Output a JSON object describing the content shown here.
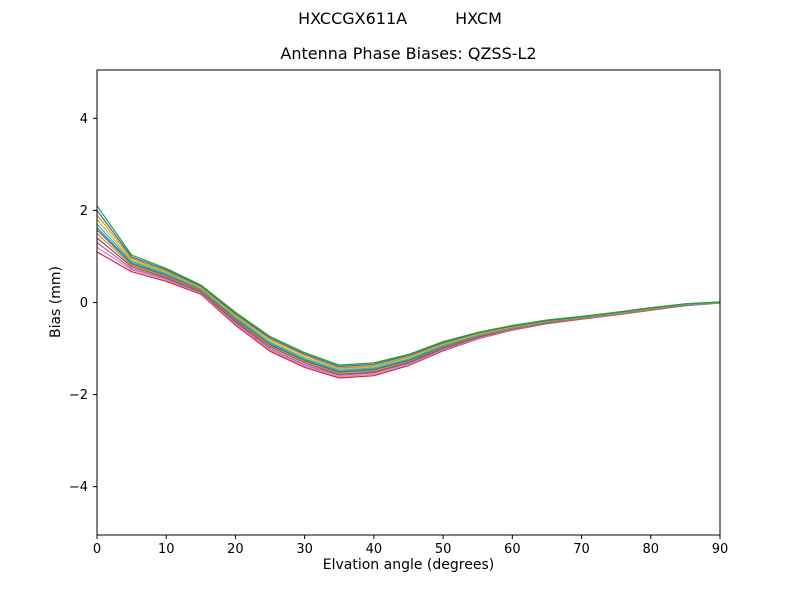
{
  "figure": {
    "suptitle_left": "HXCCGX611A",
    "suptitle_right": "HXCM",
    "title": "Antenna Phase Biases: QZSS-L2",
    "xlabel": "Elvation angle (degrees)",
    "ylabel": "Bias (mm)",
    "background_color": "#ffffff",
    "axis_color": "#000000"
  },
  "chart_data": {
    "type": "line",
    "title": "Antenna Phase Biases: QZSS-L2",
    "xlabel": "Elvation angle (degrees)",
    "ylabel": "Bias (mm)",
    "xlim": [
      0,
      90
    ],
    "ylim": [
      -5.05,
      5.05
    ],
    "x_ticks": [
      0,
      10,
      20,
      30,
      40,
      50,
      60,
      70,
      80,
      90
    ],
    "x_tick_labels": [
      "0",
      "10",
      "20",
      "30",
      "40",
      "50",
      "60",
      "70",
      "80",
      "90"
    ],
    "y_ticks": [
      -4,
      -2,
      0,
      2,
      4
    ],
    "y_tick_labels": [
      "−4",
      "−2",
      "0",
      "2",
      "4"
    ],
    "grid": false,
    "legend": "none",
    "x": [
      0,
      5,
      10,
      15,
      20,
      25,
      30,
      35,
      40,
      45,
      50,
      55,
      60,
      65,
      70,
      75,
      80,
      85,
      90
    ],
    "series": [
      {
        "name": "line-01",
        "color": "#d62728",
        "values": [
          1.1,
          0.67,
          0.46,
          0.18,
          -0.49,
          -1.06,
          -1.41,
          -1.64,
          -1.59,
          -1.37,
          -1.05,
          -0.79,
          -0.6,
          -0.46,
          -0.36,
          -0.27,
          -0.17,
          -0.07,
          -0.01
        ]
      },
      {
        "name": "line-02",
        "color": "#e377c2",
        "values": [
          1.2,
          0.71,
          0.49,
          0.2,
          -0.46,
          -1.03,
          -1.38,
          -1.61,
          -1.56,
          -1.35,
          -1.03,
          -0.78,
          -0.59,
          -0.45,
          -0.35,
          -0.26,
          -0.16,
          -0.07,
          -0.01
        ]
      },
      {
        "name": "line-03",
        "color": "#9467bd",
        "values": [
          1.3,
          0.74,
          0.52,
          0.22,
          -0.43,
          -1.0,
          -1.35,
          -1.58,
          -1.53,
          -1.32,
          -1.01,
          -0.76,
          -0.58,
          -0.44,
          -0.35,
          -0.26,
          -0.16,
          -0.06,
          -0.01
        ]
      },
      {
        "name": "line-04",
        "color": "#8c564b",
        "values": [
          1.4,
          0.78,
          0.54,
          0.24,
          -0.41,
          -0.96,
          -1.31,
          -1.56,
          -1.51,
          -1.3,
          -0.99,
          -0.75,
          -0.57,
          -0.44,
          -0.34,
          -0.25,
          -0.15,
          -0.06,
          0.0
        ]
      },
      {
        "name": "line-05",
        "color": "#ff7f0e",
        "values": [
          1.5,
          0.81,
          0.57,
          0.26,
          -0.38,
          -0.93,
          -1.28,
          -1.53,
          -1.48,
          -1.27,
          -0.97,
          -0.73,
          -0.56,
          -0.43,
          -0.34,
          -0.25,
          -0.15,
          -0.05,
          0.0
        ]
      },
      {
        "name": "line-06",
        "color": "#1f77b4",
        "values": [
          1.58,
          0.84,
          0.59,
          0.28,
          -0.36,
          -0.91,
          -1.26,
          -1.51,
          -1.46,
          -1.26,
          -0.96,
          -0.72,
          -0.55,
          -0.42,
          -0.33,
          -0.24,
          -0.14,
          -0.05,
          0.0
        ]
      },
      {
        "name": "line-07",
        "color": "#7f7f7f",
        "values": [
          1.63,
          0.86,
          0.61,
          0.29,
          -0.34,
          -0.89,
          -1.24,
          -1.49,
          -1.44,
          -1.24,
          -0.95,
          -0.72,
          -0.55,
          -0.42,
          -0.33,
          -0.24,
          -0.14,
          -0.05,
          0.0
        ]
      },
      {
        "name": "line-08",
        "color": "#17becf",
        "values": [
          1.7,
          0.89,
          0.63,
          0.3,
          -0.32,
          -0.87,
          -1.22,
          -1.47,
          -1.42,
          -1.23,
          -0.93,
          -0.71,
          -0.54,
          -0.41,
          -0.32,
          -0.23,
          -0.13,
          -0.05,
          0.0
        ]
      },
      {
        "name": "line-09",
        "color": "#bcbd22",
        "values": [
          1.8,
          0.92,
          0.66,
          0.32,
          -0.29,
          -0.84,
          -1.19,
          -1.44,
          -1.39,
          -1.2,
          -0.91,
          -0.69,
          -0.53,
          -0.4,
          -0.32,
          -0.23,
          -0.13,
          -0.04,
          0.0
        ]
      },
      {
        "name": "line-10",
        "color": "#ff7f0e",
        "values": [
          1.9,
          0.96,
          0.68,
          0.34,
          -0.27,
          -0.8,
          -1.15,
          -1.42,
          -1.37,
          -1.18,
          -0.89,
          -0.68,
          -0.52,
          -0.4,
          -0.31,
          -0.22,
          -0.12,
          -0.04,
          0.01
        ]
      },
      {
        "name": "line-11",
        "color": "#1f77b4",
        "values": [
          2.0,
          0.99,
          0.71,
          0.36,
          -0.24,
          -0.77,
          -1.12,
          -1.39,
          -1.34,
          -1.15,
          -0.87,
          -0.66,
          -0.51,
          -0.39,
          -0.31,
          -0.22,
          -0.12,
          -0.03,
          0.01
        ]
      },
      {
        "name": "line-12",
        "color": "#2ca02c",
        "values": [
          2.1,
          1.03,
          0.74,
          0.38,
          -0.21,
          -0.74,
          -1.09,
          -1.36,
          -1.31,
          -1.13,
          -0.85,
          -0.65,
          -0.5,
          -0.38,
          -0.3,
          -0.21,
          -0.11,
          -0.03,
          0.01
        ]
      }
    ]
  }
}
